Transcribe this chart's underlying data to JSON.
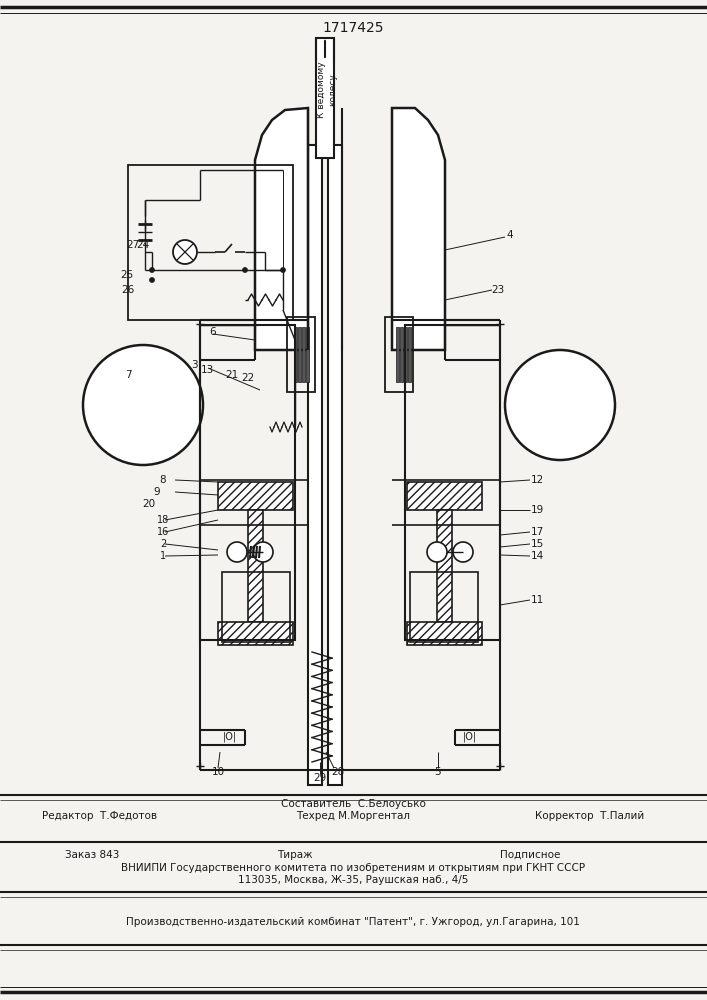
{
  "patent_number": "1717425",
  "background": "#f5f3ef",
  "line_color": "#1a1a1a",
  "footer": {
    "sestavitel": "Составитель  С.Белоусько",
    "redaktor": "Редактор  Т.Федотов",
    "tehred": "Техред М.Моргентал",
    "korrektor": "Корректор  Т.Палий",
    "zakaz": "Заказ 843",
    "tirazh": "Тираж",
    "podpisnoe": "Подписное",
    "vniipи": "ВНИИПИ Государственного комитета по изобретениям и открытиям при ГКНТ СССР",
    "address": "113035, Москва, Ж-35, Раушская наб., 4/5",
    "producer": "Производственно-издательский комбинат \"Патент\", г. Ужгород, ул.Гагарина, 101"
  },
  "label_к_ведому": "К ведомому\nколесу"
}
